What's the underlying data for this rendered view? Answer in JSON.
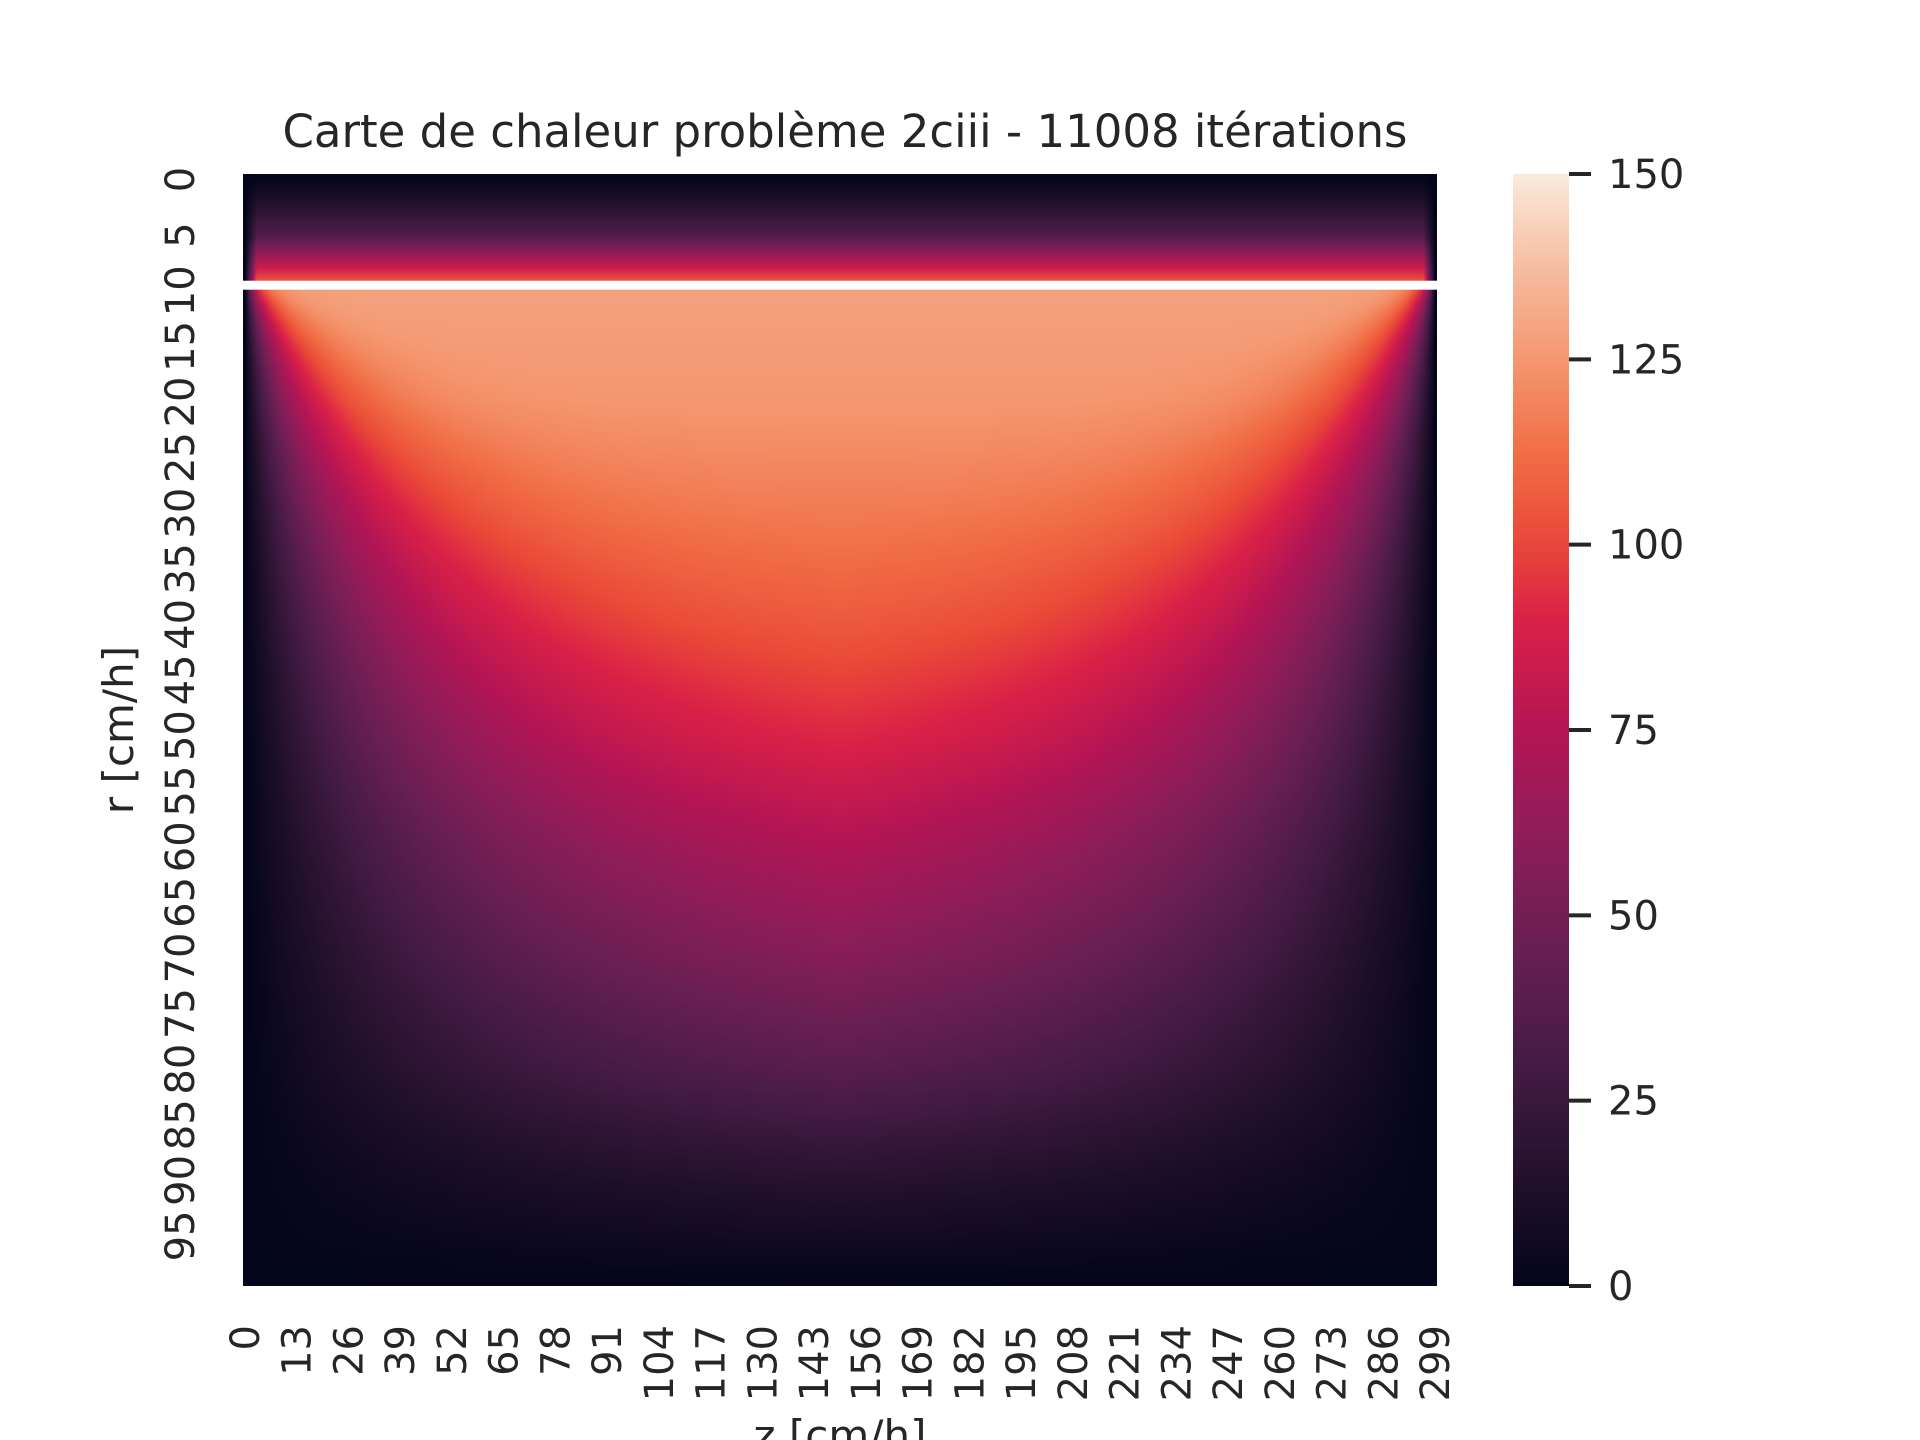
{
  "chart_data": {
    "type": "heatmap",
    "title": "Carte de chaleur problème 2ciii - 11008 itérations",
    "xlabel": "z [cm/h]",
    "ylabel": "r [cm/h]",
    "x_tick_labels": [
      "0",
      "13",
      "26",
      "39",
      "52",
      "65",
      "78",
      "91",
      "104",
      "117",
      "130",
      "143",
      "156",
      "169",
      "182",
      "195",
      "208",
      "221",
      "234",
      "247",
      "260",
      "273",
      "286",
      "299"
    ],
    "y_tick_labels": [
      "0",
      "5",
      "10",
      "15",
      "20",
      "25",
      "30",
      "35",
      "40",
      "45",
      "50",
      "55",
      "60",
      "65",
      "70",
      "75",
      "80",
      "85",
      "90",
      "95"
    ],
    "grid_shape": {
      "rows": 100,
      "cols": 300
    },
    "colorbar": {
      "colormap": "rocket",
      "vmin": 0,
      "vmax": 150,
      "ticks": [
        "0",
        "25",
        "50",
        "75",
        "100",
        "125",
        "150"
      ]
    },
    "highlight_row": 10,
    "highlight_color": "#ffffff",
    "value_profile": {
      "rows_above_line": [
        {
          "r": 0,
          "value": 1
        },
        {
          "r": 5,
          "value": 35
        },
        {
          "r": 9,
          "value": 103
        }
      ],
      "rows_below_line_center": [
        {
          "r": 11,
          "value": 128
        },
        {
          "r": 20,
          "value": 125
        },
        {
          "r": 30,
          "value": 117
        },
        {
          "r": 40,
          "value": 108
        },
        {
          "r": 50,
          "value": 97
        },
        {
          "r": 60,
          "value": 82
        },
        {
          "r": 65,
          "value": 75
        },
        {
          "r": 70,
          "value": 67
        },
        {
          "r": 80,
          "value": 48
        },
        {
          "r": 90,
          "value": 22
        },
        {
          "r": 99,
          "value": 1
        }
      ],
      "side_edges_value": 0
    }
  }
}
